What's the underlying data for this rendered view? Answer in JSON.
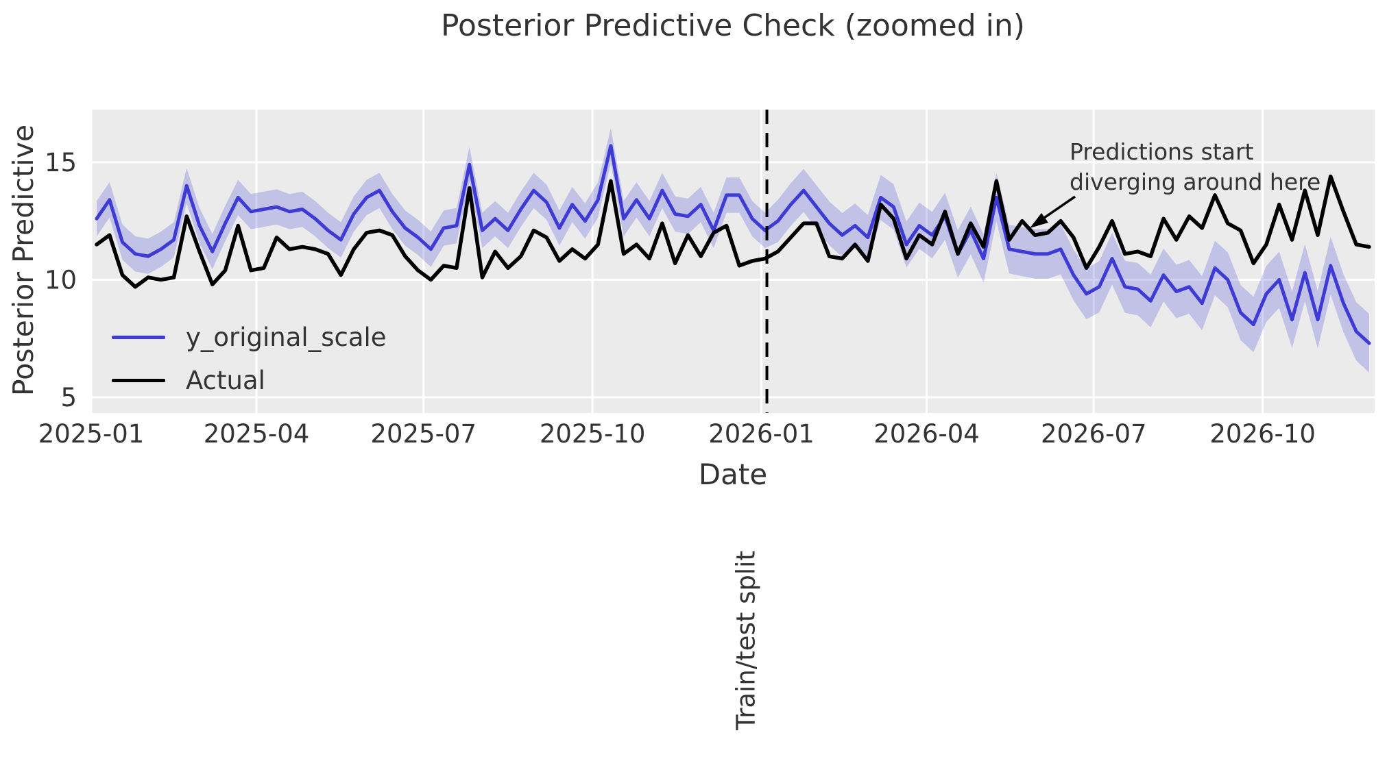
{
  "figure": {
    "title": "Posterior Predictive Check (zoomed in)",
    "x_axis_label": "Date",
    "y_axis_label": "Posterior Predictive",
    "plot_background": "#ebebeb",
    "grid_color": "#ffffff",
    "text_color": "#333333"
  },
  "legend": {
    "items": [
      {
        "label": "y_original_scale",
        "color": "#3e3ad4"
      },
      {
        "label": "Actual",
        "color": "#000000"
      }
    ]
  },
  "annotation": {
    "line1": "Predictions start",
    "line2": "diverging around here"
  },
  "split": {
    "label": "Train/test split",
    "date": "2026-01-04"
  },
  "chart_data": {
    "type": "line",
    "title": "Posterior Predictive Check (zoomed in)",
    "xlabel": "Date",
    "ylabel": "Posterior Predictive",
    "xlim": [
      "2025-01-01",
      "2026-12-01"
    ],
    "ylim": [
      4.33,
      17.24
    ],
    "yticks": [
      5,
      10,
      15
    ],
    "xticks": [
      {
        "date": "2025-01-01",
        "label": "2025-01"
      },
      {
        "date": "2025-04-01",
        "label": "2025-04"
      },
      {
        "date": "2025-07-01",
        "label": "2025-07"
      },
      {
        "date": "2025-10-01",
        "label": "2025-10"
      },
      {
        "date": "2026-01-01",
        "label": "2026-01"
      },
      {
        "date": "2026-04-01",
        "label": "2026-04"
      },
      {
        "date": "2026-07-01",
        "label": "2026-07"
      },
      {
        "date": "2026-10-01",
        "label": "2026-10"
      }
    ],
    "grid": true,
    "legend_position": "lower-left",
    "x_start_date": "2025-01-04",
    "x_step_days": 7,
    "train_points": 53,
    "split_line": {
      "date": "2026-01-04",
      "style": "dashed",
      "color": "#000000",
      "label": "Train/test split"
    },
    "series": [
      {
        "name": "y_original_scale",
        "color": "#3e3ad4",
        "band": {
          "halfwidth_train": 0.75,
          "halfwidth_test_start": 0.9,
          "halfwidth_test_end": 1.25,
          "opacity": 0.24
        },
        "values": [
          12.6,
          13.4,
          11.6,
          11.1,
          11.0,
          11.3,
          11.7,
          14.0,
          12.3,
          11.2,
          12.4,
          13.5,
          12.9,
          13.0,
          13.1,
          12.9,
          13.0,
          12.6,
          12.1,
          11.7,
          12.8,
          13.5,
          13.8,
          12.9,
          12.2,
          11.8,
          11.3,
          12.2,
          12.3,
          14.9,
          12.1,
          12.6,
          12.1,
          13.0,
          13.8,
          13.3,
          12.2,
          13.2,
          12.5,
          13.4,
          15.7,
          12.6,
          13.4,
          12.6,
          13.8,
          12.8,
          12.7,
          13.2,
          12.1,
          13.6,
          13.6,
          12.6,
          12.1,
          12.5,
          13.2,
          13.8,
          13.1,
          12.4,
          11.9,
          12.3,
          11.8,
          13.5,
          13.1,
          11.5,
          12.3,
          11.9,
          12.7,
          11.1,
          12.1,
          10.9,
          13.5,
          11.3,
          11.2,
          11.1,
          11.1,
          11.3,
          10.2,
          9.4,
          9.7,
          10.9,
          9.7,
          9.6,
          9.1,
          10.2,
          9.5,
          9.7,
          9.0,
          10.5,
          10.0,
          8.6,
          8.1,
          9.4,
          10.0,
          8.3,
          10.3,
          8.3,
          10.6,
          9.0,
          7.8,
          7.3
        ]
      },
      {
        "name": "Actual",
        "color": "#000000",
        "values": [
          11.5,
          11.9,
          10.2,
          9.7,
          10.1,
          10.0,
          10.1,
          12.7,
          11.2,
          9.8,
          10.4,
          12.3,
          10.4,
          10.5,
          11.8,
          11.3,
          11.4,
          11.3,
          11.1,
          10.2,
          11.3,
          12.0,
          12.1,
          11.9,
          11.0,
          10.4,
          10.0,
          10.6,
          10.5,
          13.9,
          10.1,
          11.2,
          10.5,
          11.0,
          12.1,
          11.8,
          10.8,
          11.3,
          10.9,
          11.5,
          14.2,
          11.1,
          11.5,
          10.9,
          12.4,
          10.7,
          11.9,
          11.0,
          12.0,
          12.3,
          10.6,
          10.8,
          10.9,
          11.2,
          11.8,
          12.4,
          12.4,
          11.0,
          10.9,
          11.5,
          10.8,
          13.2,
          12.6,
          10.9,
          11.9,
          11.5,
          12.9,
          11.1,
          12.4,
          11.4,
          14.2,
          11.7,
          12.5,
          11.9,
          12.0,
          12.5,
          11.8,
          10.5,
          11.4,
          12.5,
          11.1,
          11.2,
          11.0,
          12.6,
          11.7,
          12.7,
          12.2,
          13.6,
          12.4,
          12.1,
          10.7,
          11.5,
          13.2,
          11.7,
          13.8,
          11.9,
          14.4,
          12.9,
          11.5,
          11.4
        ]
      }
    ],
    "annotations": [
      {
        "text": "Predictions start diverging around here",
        "arrow_points_to": {
          "date": "2026-06-06",
          "value": 12.4
        }
      }
    ]
  }
}
